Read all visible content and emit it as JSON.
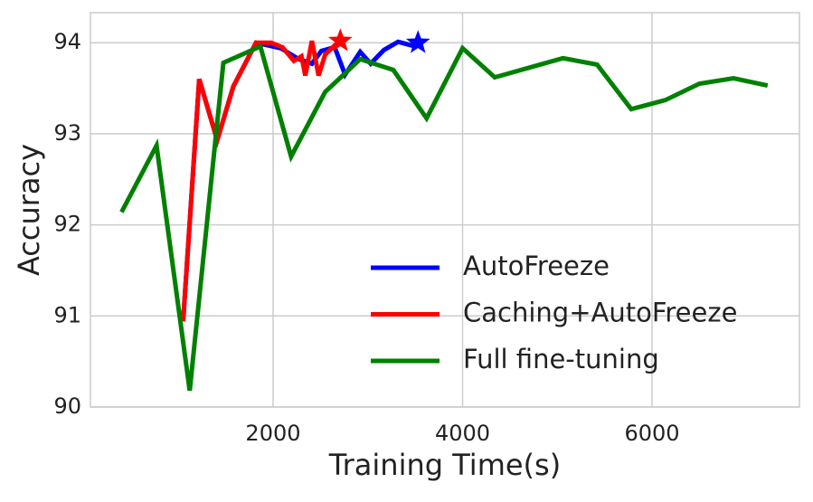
{
  "chart_data": {
    "type": "line",
    "xlabel": "Training Time(s)",
    "ylabel": "Accuracy",
    "xlim": [
      72,
      7556
    ],
    "ylim": [
      90,
      94.33
    ],
    "xticks": [
      2000,
      4000,
      6000
    ],
    "yticks": [
      90,
      91,
      92,
      93,
      94
    ],
    "grid": true,
    "legend": "lower right",
    "series": [
      {
        "name": "AutoFreeze",
        "color": "#0000ff",
        "end_marker": "star",
        "x": [
          1050,
          1220,
          1410,
          1580,
          1820,
          2080,
          2270,
          2410,
          2510,
          2650,
          2760,
          2920,
          3030,
          3170,
          3320,
          3460,
          3530
        ],
        "values": [
          90.94,
          93.6,
          92.93,
          93.52,
          94.0,
          93.94,
          93.82,
          93.77,
          93.91,
          93.95,
          93.65,
          93.9,
          93.77,
          93.92,
          94.01,
          93.97,
          94.0
        ]
      },
      {
        "name": "Caching+AutoFreeze",
        "color": "#ff0000",
        "end_marker": "star",
        "x": [
          1050,
          1220,
          1410,
          1580,
          1820,
          1980,
          2100,
          2220,
          2300,
          2340,
          2410,
          2480,
          2550,
          2650,
          2710
        ],
        "values": [
          90.94,
          93.6,
          92.93,
          93.52,
          94.0,
          94.0,
          93.95,
          93.8,
          93.85,
          93.64,
          94.02,
          93.64,
          93.87,
          93.97,
          94.02
        ]
      },
      {
        "name": "Full fine-tuning",
        "color": "#008000",
        "x": [
          400,
          770,
          1120,
          1475,
          1866,
          2190,
          2550,
          2920,
          3270,
          3620,
          4000,
          4340,
          5060,
          5420,
          5780,
          6140,
          6500,
          6860,
          7220
        ],
        "values": [
          92.14,
          92.87,
          90.18,
          93.78,
          93.96,
          92.75,
          93.46,
          93.82,
          93.7,
          93.17,
          93.94,
          93.62,
          93.83,
          93.76,
          93.27,
          93.37,
          93.55,
          93.61,
          93.53
        ]
      }
    ]
  }
}
